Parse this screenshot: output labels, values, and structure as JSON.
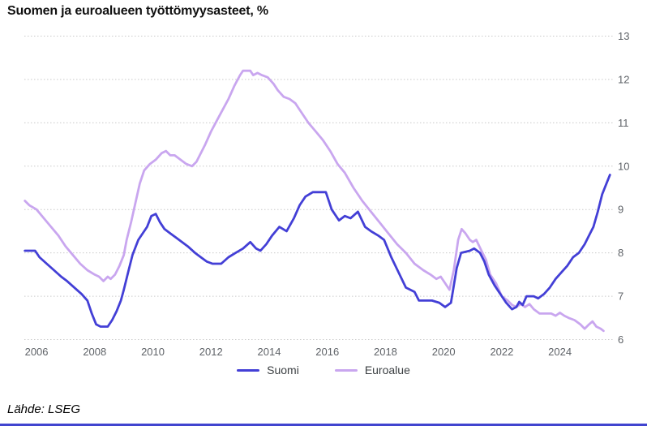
{
  "title": "Suomen ja euroalueen työttömyysasteet, %",
  "source": "Lähde: LSEG",
  "colors": {
    "suomi": "#433fd6",
    "euroalue": "#c9a6ef",
    "grid": "#c9c9c9",
    "tick_text": "#5f6368",
    "title_text": "#111111",
    "legend_text": "#3c4043",
    "bottom_bar": "#4144cf"
  },
  "chart_data": {
    "type": "line",
    "title": "Suomen ja euroalueen työttömyysasteet, %",
    "xlabel": "",
    "ylabel": "",
    "y_axis_side": "right",
    "grid": "horizontal-dotted",
    "legend_position": "bottom-center",
    "x_range": [
      2005.58,
      2025.85
    ],
    "y_range": [
      6,
      13
    ],
    "x_ticks": [
      2006,
      2008,
      2010,
      2012,
      2014,
      2016,
      2018,
      2020,
      2022,
      2024
    ],
    "y_ticks": [
      6,
      7,
      8,
      9,
      10,
      11,
      12,
      13
    ],
    "series": [
      {
        "name": "Suomi",
        "color": "#433fd6",
        "points": [
          [
            2005.6,
            8.05
          ],
          [
            2005.95,
            8.05
          ],
          [
            2006.1,
            7.9
          ],
          [
            2006.35,
            7.75
          ],
          [
            2006.6,
            7.6
          ],
          [
            2006.85,
            7.45
          ],
          [
            2007.05,
            7.35
          ],
          [
            2007.3,
            7.2
          ],
          [
            2007.55,
            7.05
          ],
          [
            2007.75,
            6.9
          ],
          [
            2007.9,
            6.6
          ],
          [
            2008.05,
            6.35
          ],
          [
            2008.2,
            6.3
          ],
          [
            2008.45,
            6.3
          ],
          [
            2008.6,
            6.45
          ],
          [
            2008.75,
            6.65
          ],
          [
            2008.9,
            6.9
          ],
          [
            2009.0,
            7.15
          ],
          [
            2009.15,
            7.55
          ],
          [
            2009.3,
            7.95
          ],
          [
            2009.5,
            8.3
          ],
          [
            2009.65,
            8.45
          ],
          [
            2009.8,
            8.6
          ],
          [
            2009.95,
            8.85
          ],
          [
            2010.1,
            8.9
          ],
          [
            2010.25,
            8.7
          ],
          [
            2010.4,
            8.55
          ],
          [
            2010.6,
            8.45
          ],
          [
            2010.8,
            8.35
          ],
          [
            2011.0,
            8.25
          ],
          [
            2011.2,
            8.15
          ],
          [
            2011.45,
            8.0
          ],
          [
            2011.65,
            7.9
          ],
          [
            2011.85,
            7.8
          ],
          [
            2012.05,
            7.75
          ],
          [
            2012.35,
            7.75
          ],
          [
            2012.6,
            7.9
          ],
          [
            2012.85,
            8.0
          ],
          [
            2013.1,
            8.1
          ],
          [
            2013.35,
            8.25
          ],
          [
            2013.55,
            8.1
          ],
          [
            2013.7,
            8.05
          ],
          [
            2013.9,
            8.2
          ],
          [
            2014.1,
            8.4
          ],
          [
            2014.35,
            8.6
          ],
          [
            2014.6,
            8.5
          ],
          [
            2014.85,
            8.8
          ],
          [
            2015.05,
            9.1
          ],
          [
            2015.25,
            9.3
          ],
          [
            2015.5,
            9.4
          ],
          [
            2015.95,
            9.4
          ],
          [
            2016.15,
            9.0
          ],
          [
            2016.4,
            8.75
          ],
          [
            2016.6,
            8.85
          ],
          [
            2016.8,
            8.8
          ],
          [
            2017.05,
            8.95
          ],
          [
            2017.3,
            8.6
          ],
          [
            2017.5,
            8.5
          ],
          [
            2017.75,
            8.4
          ],
          [
            2017.95,
            8.3
          ],
          [
            2018.2,
            7.9
          ],
          [
            2018.45,
            7.55
          ],
          [
            2018.7,
            7.2
          ],
          [
            2019.0,
            7.1
          ],
          [
            2019.15,
            6.9
          ],
          [
            2019.6,
            6.9
          ],
          [
            2019.85,
            6.85
          ],
          [
            2020.05,
            6.75
          ],
          [
            2020.25,
            6.85
          ],
          [
            2020.45,
            7.65
          ],
          [
            2020.6,
            8.0
          ],
          [
            2020.9,
            8.05
          ],
          [
            2021.05,
            8.1
          ],
          [
            2021.25,
            8.0
          ],
          [
            2021.4,
            7.8
          ],
          [
            2021.55,
            7.5
          ],
          [
            2021.75,
            7.25
          ],
          [
            2021.95,
            7.05
          ],
          [
            2022.15,
            6.85
          ],
          [
            2022.35,
            6.7
          ],
          [
            2022.5,
            6.75
          ],
          [
            2022.6,
            6.87
          ],
          [
            2022.72,
            6.8
          ],
          [
            2022.85,
            7.0
          ],
          [
            2023.1,
            7.0
          ],
          [
            2023.25,
            6.95
          ],
          [
            2023.45,
            7.05
          ],
          [
            2023.65,
            7.2
          ],
          [
            2023.85,
            7.4
          ],
          [
            2024.05,
            7.55
          ],
          [
            2024.25,
            7.7
          ],
          [
            2024.45,
            7.9
          ],
          [
            2024.65,
            8.0
          ],
          [
            2024.85,
            8.2
          ],
          [
            2025.0,
            8.4
          ],
          [
            2025.15,
            8.6
          ],
          [
            2025.3,
            8.95
          ],
          [
            2025.45,
            9.35
          ],
          [
            2025.6,
            9.6
          ],
          [
            2025.72,
            9.8
          ]
        ]
      },
      {
        "name": "Euroalue",
        "color": "#c9a6ef",
        "points": [
          [
            2005.6,
            9.2
          ],
          [
            2005.75,
            9.1
          ],
          [
            2006.0,
            9.0
          ],
          [
            2006.25,
            8.8
          ],
          [
            2006.5,
            8.6
          ],
          [
            2006.75,
            8.4
          ],
          [
            2007.0,
            8.15
          ],
          [
            2007.25,
            7.95
          ],
          [
            2007.5,
            7.75
          ],
          [
            2007.75,
            7.6
          ],
          [
            2008.0,
            7.5
          ],
          [
            2008.15,
            7.45
          ],
          [
            2008.3,
            7.35
          ],
          [
            2008.45,
            7.45
          ],
          [
            2008.55,
            7.4
          ],
          [
            2008.7,
            7.5
          ],
          [
            2008.85,
            7.7
          ],
          [
            2009.0,
            7.95
          ],
          [
            2009.1,
            8.3
          ],
          [
            2009.25,
            8.7
          ],
          [
            2009.4,
            9.15
          ],
          [
            2009.55,
            9.6
          ],
          [
            2009.7,
            9.9
          ],
          [
            2009.9,
            10.05
          ],
          [
            2010.1,
            10.15
          ],
          [
            2010.3,
            10.3
          ],
          [
            2010.45,
            10.35
          ],
          [
            2010.6,
            10.25
          ],
          [
            2010.75,
            10.25
          ],
          [
            2010.95,
            10.15
          ],
          [
            2011.15,
            10.05
          ],
          [
            2011.35,
            10.0
          ],
          [
            2011.5,
            10.1
          ],
          [
            2011.65,
            10.3
          ],
          [
            2011.8,
            10.5
          ],
          [
            2012.0,
            10.8
          ],
          [
            2012.2,
            11.05
          ],
          [
            2012.4,
            11.3
          ],
          [
            2012.6,
            11.55
          ],
          [
            2012.8,
            11.85
          ],
          [
            2013.0,
            12.1
          ],
          [
            2013.1,
            12.2
          ],
          [
            2013.35,
            12.2
          ],
          [
            2013.45,
            12.1
          ],
          [
            2013.6,
            12.15
          ],
          [
            2013.75,
            12.1
          ],
          [
            2013.95,
            12.05
          ],
          [
            2014.15,
            11.9
          ],
          [
            2014.3,
            11.75
          ],
          [
            2014.5,
            11.6
          ],
          [
            2014.7,
            11.55
          ],
          [
            2014.9,
            11.45
          ],
          [
            2015.1,
            11.25
          ],
          [
            2015.35,
            11.0
          ],
          [
            2015.6,
            10.8
          ],
          [
            2015.85,
            10.6
          ],
          [
            2016.1,
            10.35
          ],
          [
            2016.35,
            10.05
          ],
          [
            2016.6,
            9.85
          ],
          [
            2016.9,
            9.5
          ],
          [
            2017.2,
            9.2
          ],
          [
            2017.5,
            8.95
          ],
          [
            2017.8,
            8.7
          ],
          [
            2018.1,
            8.45
          ],
          [
            2018.4,
            8.2
          ],
          [
            2018.7,
            8.0
          ],
          [
            2019.0,
            7.75
          ],
          [
            2019.3,
            7.6
          ],
          [
            2019.55,
            7.5
          ],
          [
            2019.75,
            7.4
          ],
          [
            2019.9,
            7.45
          ],
          [
            2020.05,
            7.3
          ],
          [
            2020.2,
            7.15
          ],
          [
            2020.35,
            7.6
          ],
          [
            2020.5,
            8.3
          ],
          [
            2020.62,
            8.55
          ],
          [
            2020.75,
            8.45
          ],
          [
            2020.9,
            8.3
          ],
          [
            2021.0,
            8.25
          ],
          [
            2021.12,
            8.3
          ],
          [
            2021.3,
            8.05
          ],
          [
            2021.45,
            7.85
          ],
          [
            2021.6,
            7.5
          ],
          [
            2021.8,
            7.3
          ],
          [
            2022.0,
            7.0
          ],
          [
            2022.2,
            6.9
          ],
          [
            2022.35,
            6.8
          ],
          [
            2022.5,
            6.75
          ],
          [
            2022.65,
            6.82
          ],
          [
            2022.8,
            6.75
          ],
          [
            2022.95,
            6.82
          ],
          [
            2023.1,
            6.7
          ],
          [
            2023.3,
            6.6
          ],
          [
            2023.7,
            6.6
          ],
          [
            2023.85,
            6.55
          ],
          [
            2024.0,
            6.62
          ],
          [
            2024.15,
            6.55
          ],
          [
            2024.3,
            6.5
          ],
          [
            2024.5,
            6.45
          ],
          [
            2024.7,
            6.35
          ],
          [
            2024.85,
            6.25
          ],
          [
            2025.0,
            6.35
          ],
          [
            2025.12,
            6.42
          ],
          [
            2025.25,
            6.3
          ],
          [
            2025.4,
            6.25
          ],
          [
            2025.5,
            6.2
          ]
        ]
      }
    ]
  }
}
